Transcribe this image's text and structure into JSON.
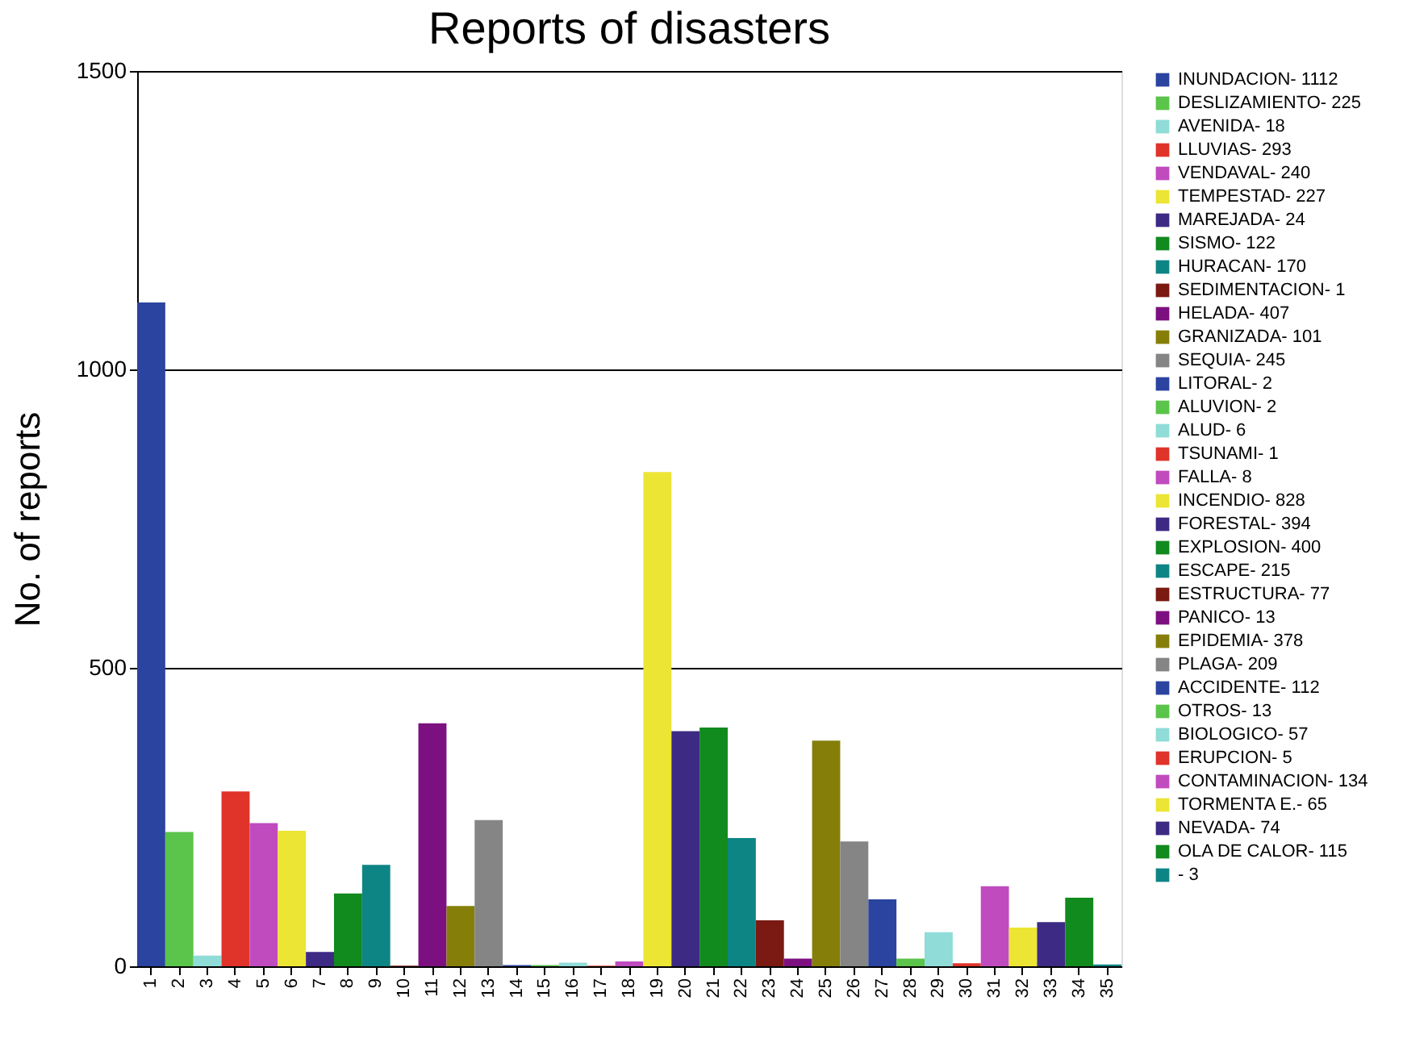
{
  "chart_data": {
    "type": "bar",
    "title": "Reports of disasters",
    "ylabel": "No. of reports",
    "categories": [
      "1",
      "2",
      "3",
      "4",
      "5",
      "6",
      "7",
      "8",
      "9",
      "10",
      "11",
      "12",
      "13",
      "14",
      "15",
      "16",
      "17",
      "18",
      "19",
      "20",
      "21",
      "22",
      "23",
      "24",
      "25",
      "26",
      "27",
      "28",
      "29",
      "30",
      "31",
      "32",
      "33",
      "34",
      "35"
    ],
    "ylim": [
      0,
      1500
    ],
    "yticks": [
      0,
      500,
      1000,
      1500
    ],
    "grid": "y",
    "legend": "right",
    "series": [
      {
        "name": "INUNDACION- 1112",
        "color": "#2b44a0",
        "values": [
          1112,
          null,
          null,
          null,
          null,
          null,
          null,
          null,
          null,
          null,
          null,
          null,
          null,
          null,
          null,
          null,
          null,
          null,
          null,
          null,
          null,
          null,
          null,
          null,
          null,
          null,
          null,
          null,
          null,
          null,
          null,
          null,
          null,
          null,
          null
        ]
      },
      {
        "name": "DESLIZAMIENTO- 225",
        "color": "#5bc44a",
        "values": [
          null,
          225,
          null,
          null,
          null,
          null,
          null,
          null,
          null,
          null,
          null,
          null,
          null,
          null,
          null,
          null,
          null,
          null,
          null,
          null,
          null,
          null,
          null,
          null,
          null,
          null,
          null,
          null,
          null,
          null,
          null,
          null,
          null,
          null,
          null
        ]
      },
      {
        "name": "AVENIDA- 18",
        "color": "#8fdcd8",
        "values": [
          null,
          null,
          18,
          null,
          null,
          null,
          null,
          null,
          null,
          null,
          null,
          null,
          null,
          null,
          null,
          null,
          null,
          null,
          null,
          null,
          null,
          null,
          null,
          null,
          null,
          null,
          null,
          null,
          null,
          null,
          null,
          null,
          null,
          null,
          null
        ]
      },
      {
        "name": "LLUVIAS- 293",
        "color": "#e0332a",
        "values": [
          null,
          null,
          null,
          293,
          null,
          null,
          null,
          null,
          null,
          null,
          null,
          null,
          null,
          null,
          null,
          null,
          null,
          null,
          null,
          null,
          null,
          null,
          null,
          null,
          null,
          null,
          null,
          null,
          null,
          null,
          null,
          null,
          null,
          null,
          null
        ]
      },
      {
        "name": "VENDAVAL- 240",
        "color": "#c04bbf",
        "values": [
          null,
          null,
          null,
          null,
          240,
          null,
          null,
          null,
          null,
          null,
          null,
          null,
          null,
          null,
          null,
          null,
          null,
          null,
          null,
          null,
          null,
          null,
          null,
          null,
          null,
          null,
          null,
          null,
          null,
          null,
          null,
          null,
          null,
          null,
          null
        ]
      },
      {
        "name": "TEMPESTAD- 227",
        "color": "#ece534",
        "values": [
          null,
          null,
          null,
          null,
          null,
          227,
          null,
          null,
          null,
          null,
          null,
          null,
          null,
          null,
          null,
          null,
          null,
          null,
          null,
          null,
          null,
          null,
          null,
          null,
          null,
          null,
          null,
          null,
          null,
          null,
          null,
          null,
          null,
          null,
          null
        ]
      },
      {
        "name": "MAREJADA- 24",
        "color": "#3d2a85",
        "values": [
          null,
          null,
          null,
          null,
          null,
          null,
          24,
          null,
          null,
          null,
          null,
          null,
          null,
          null,
          null,
          null,
          null,
          null,
          null,
          null,
          null,
          null,
          null,
          null,
          null,
          null,
          null,
          null,
          null,
          null,
          null,
          null,
          null,
          null,
          null
        ]
      },
      {
        "name": "SISMO- 122",
        "color": "#118a1e",
        "values": [
          null,
          null,
          null,
          null,
          null,
          null,
          null,
          122,
          null,
          null,
          null,
          null,
          null,
          null,
          null,
          null,
          null,
          null,
          null,
          null,
          null,
          null,
          null,
          null,
          null,
          null,
          null,
          null,
          null,
          null,
          null,
          null,
          null,
          null,
          null
        ]
      },
      {
        "name": "HURACAN- 170",
        "color": "#0e8585",
        "values": [
          null,
          null,
          null,
          null,
          null,
          null,
          null,
          null,
          170,
          null,
          null,
          null,
          null,
          null,
          null,
          null,
          null,
          null,
          null,
          null,
          null,
          null,
          null,
          null,
          null,
          null,
          null,
          null,
          null,
          null,
          null,
          null,
          null,
          null,
          null
        ]
      },
      {
        "name": "SEDIMENTACION- 1",
        "color": "#7a1a12",
        "values": [
          null,
          null,
          null,
          null,
          null,
          null,
          null,
          null,
          null,
          1,
          null,
          null,
          null,
          null,
          null,
          null,
          null,
          null,
          null,
          null,
          null,
          null,
          null,
          null,
          null,
          null,
          null,
          null,
          null,
          null,
          null,
          null,
          null,
          null,
          null
        ]
      },
      {
        "name": "HELADA- 407",
        "color": "#7d1080",
        "values": [
          null,
          null,
          null,
          null,
          null,
          null,
          null,
          null,
          null,
          null,
          407,
          null,
          null,
          null,
          null,
          null,
          null,
          null,
          null,
          null,
          null,
          null,
          null,
          null,
          null,
          null,
          null,
          null,
          null,
          null,
          null,
          null,
          null,
          null,
          null
        ]
      },
      {
        "name": "GRANIZADA- 101",
        "color": "#857f0a",
        "values": [
          null,
          null,
          null,
          null,
          null,
          null,
          null,
          null,
          null,
          null,
          null,
          101,
          null,
          null,
          null,
          null,
          null,
          null,
          null,
          null,
          null,
          null,
          null,
          null,
          null,
          null,
          null,
          null,
          null,
          null,
          null,
          null,
          null,
          null,
          null
        ]
      },
      {
        "name": "SEQUIA- 245",
        "color": "#858585",
        "values": [
          null,
          null,
          null,
          null,
          null,
          null,
          null,
          null,
          null,
          null,
          null,
          null,
          245,
          null,
          null,
          null,
          null,
          null,
          null,
          null,
          null,
          null,
          null,
          null,
          null,
          null,
          null,
          null,
          null,
          null,
          null,
          null,
          null,
          null,
          null
        ]
      },
      {
        "name": "LITORAL- 2",
        "color": "#2b44a0",
        "values": [
          null,
          null,
          null,
          null,
          null,
          null,
          null,
          null,
          null,
          null,
          null,
          null,
          null,
          2,
          null,
          null,
          null,
          null,
          null,
          null,
          null,
          null,
          null,
          null,
          null,
          null,
          null,
          null,
          null,
          null,
          null,
          null,
          null,
          null,
          null
        ]
      },
      {
        "name": "ALUVION- 2",
        "color": "#5bc44a",
        "values": [
          null,
          null,
          null,
          null,
          null,
          null,
          null,
          null,
          null,
          null,
          null,
          null,
          null,
          null,
          2,
          null,
          null,
          null,
          null,
          null,
          null,
          null,
          null,
          null,
          null,
          null,
          null,
          null,
          null,
          null,
          null,
          null,
          null,
          null,
          null
        ]
      },
      {
        "name": "ALUD- 6",
        "color": "#8fdcd8",
        "values": [
          null,
          null,
          null,
          null,
          null,
          null,
          null,
          null,
          null,
          null,
          null,
          null,
          null,
          null,
          null,
          6,
          null,
          null,
          null,
          null,
          null,
          null,
          null,
          null,
          null,
          null,
          null,
          null,
          null,
          null,
          null,
          null,
          null,
          null,
          null
        ]
      },
      {
        "name": "TSUNAMI- 1",
        "color": "#e0332a",
        "values": [
          null,
          null,
          null,
          null,
          null,
          null,
          null,
          null,
          null,
          null,
          null,
          null,
          null,
          null,
          null,
          null,
          1,
          null,
          null,
          null,
          null,
          null,
          null,
          null,
          null,
          null,
          null,
          null,
          null,
          null,
          null,
          null,
          null,
          null,
          null
        ]
      },
      {
        "name": "FALLA- 8",
        "color": "#c04bbf",
        "values": [
          null,
          null,
          null,
          null,
          null,
          null,
          null,
          null,
          null,
          null,
          null,
          null,
          null,
          null,
          null,
          null,
          null,
          8,
          null,
          null,
          null,
          null,
          null,
          null,
          null,
          null,
          null,
          null,
          null,
          null,
          null,
          null,
          null,
          null,
          null
        ]
      },
      {
        "name": "INCENDIO- 828",
        "color": "#ece534",
        "values": [
          null,
          null,
          null,
          null,
          null,
          null,
          null,
          null,
          null,
          null,
          null,
          null,
          null,
          null,
          null,
          null,
          null,
          null,
          828,
          null,
          null,
          null,
          null,
          null,
          null,
          null,
          null,
          null,
          null,
          null,
          null,
          null,
          null,
          null,
          null
        ]
      },
      {
        "name": "FORESTAL- 394",
        "color": "#3d2a85",
        "values": [
          null,
          null,
          null,
          null,
          null,
          null,
          null,
          null,
          null,
          null,
          null,
          null,
          null,
          null,
          null,
          null,
          null,
          null,
          null,
          394,
          null,
          null,
          null,
          null,
          null,
          null,
          null,
          null,
          null,
          null,
          null,
          null,
          null,
          null,
          null
        ]
      },
      {
        "name": "EXPLOSION- 400",
        "color": "#118a1e",
        "values": [
          null,
          null,
          null,
          null,
          null,
          null,
          null,
          null,
          null,
          null,
          null,
          null,
          null,
          null,
          null,
          null,
          null,
          null,
          null,
          null,
          400,
          null,
          null,
          null,
          null,
          null,
          null,
          null,
          null,
          null,
          null,
          null,
          null,
          null,
          null
        ]
      },
      {
        "name": "ESCAPE- 215",
        "color": "#0e8585",
        "values": [
          null,
          null,
          null,
          null,
          null,
          null,
          null,
          null,
          null,
          null,
          null,
          null,
          null,
          null,
          null,
          null,
          null,
          null,
          null,
          null,
          null,
          215,
          null,
          null,
          null,
          null,
          null,
          null,
          null,
          null,
          null,
          null,
          null,
          null,
          null
        ]
      },
      {
        "name": "ESTRUCTURA- 77",
        "color": "#7a1a12",
        "values": [
          null,
          null,
          null,
          null,
          null,
          null,
          null,
          null,
          null,
          null,
          null,
          null,
          null,
          null,
          null,
          null,
          null,
          null,
          null,
          null,
          null,
          null,
          77,
          null,
          null,
          null,
          null,
          null,
          null,
          null,
          null,
          null,
          null,
          null,
          null
        ]
      },
      {
        "name": "PANICO- 13",
        "color": "#7d1080",
        "values": [
          null,
          null,
          null,
          null,
          null,
          null,
          null,
          null,
          null,
          null,
          null,
          null,
          null,
          null,
          null,
          null,
          null,
          null,
          null,
          null,
          null,
          null,
          null,
          13,
          null,
          null,
          null,
          null,
          null,
          null,
          null,
          null,
          null,
          null,
          null
        ]
      },
      {
        "name": "EPIDEMIA- 378",
        "color": "#857f0a",
        "values": [
          null,
          null,
          null,
          null,
          null,
          null,
          null,
          null,
          null,
          null,
          null,
          null,
          null,
          null,
          null,
          null,
          null,
          null,
          null,
          null,
          null,
          null,
          null,
          null,
          378,
          null,
          null,
          null,
          null,
          null,
          null,
          null,
          null,
          null,
          null
        ]
      },
      {
        "name": "PLAGA- 209",
        "color": "#858585",
        "values": [
          null,
          null,
          null,
          null,
          null,
          null,
          null,
          null,
          null,
          null,
          null,
          null,
          null,
          null,
          null,
          null,
          null,
          null,
          null,
          null,
          null,
          null,
          null,
          null,
          null,
          209,
          null,
          null,
          null,
          null,
          null,
          null,
          null,
          null,
          null
        ]
      },
      {
        "name": "ACCIDENTE- 112",
        "color": "#2b44a0",
        "values": [
          null,
          null,
          null,
          null,
          null,
          null,
          null,
          null,
          null,
          null,
          null,
          null,
          null,
          null,
          null,
          null,
          null,
          null,
          null,
          null,
          null,
          null,
          null,
          null,
          null,
          null,
          112,
          null,
          null,
          null,
          null,
          null,
          null,
          null,
          null
        ]
      },
      {
        "name": "OTROS- 13",
        "color": "#5bc44a",
        "values": [
          null,
          null,
          null,
          null,
          null,
          null,
          null,
          null,
          null,
          null,
          null,
          null,
          null,
          null,
          null,
          null,
          null,
          null,
          null,
          null,
          null,
          null,
          null,
          null,
          null,
          null,
          null,
          13,
          null,
          null,
          null,
          null,
          null,
          null,
          null
        ]
      },
      {
        "name": "BIOLOGICO- 57",
        "color": "#8fdcd8",
        "values": [
          null,
          null,
          null,
          null,
          null,
          null,
          null,
          null,
          null,
          null,
          null,
          null,
          null,
          null,
          null,
          null,
          null,
          null,
          null,
          null,
          null,
          null,
          null,
          null,
          null,
          null,
          null,
          null,
          57,
          null,
          null,
          null,
          null,
          null,
          null
        ]
      },
      {
        "name": "ERUPCION- 5",
        "color": "#e0332a",
        "values": [
          null,
          null,
          null,
          null,
          null,
          null,
          null,
          null,
          null,
          null,
          null,
          null,
          null,
          null,
          null,
          null,
          null,
          null,
          null,
          null,
          null,
          null,
          null,
          null,
          null,
          null,
          null,
          null,
          null,
          5,
          null,
          null,
          null,
          null,
          null
        ]
      },
      {
        "name": "CONTAMINACION- 134",
        "color": "#c04bbf",
        "values": [
          null,
          null,
          null,
          null,
          null,
          null,
          null,
          null,
          null,
          null,
          null,
          null,
          null,
          null,
          null,
          null,
          null,
          null,
          null,
          null,
          null,
          null,
          null,
          null,
          null,
          null,
          null,
          null,
          null,
          null,
          134,
          null,
          null,
          null,
          null
        ]
      },
      {
        "name": "TORMENTA E.- 65",
        "color": "#ece534",
        "values": [
          null,
          null,
          null,
          null,
          null,
          null,
          null,
          null,
          null,
          null,
          null,
          null,
          null,
          null,
          null,
          null,
          null,
          null,
          null,
          null,
          null,
          null,
          null,
          null,
          null,
          null,
          null,
          null,
          null,
          null,
          null,
          65,
          null,
          null,
          null
        ]
      },
      {
        "name": "NEVADA- 74",
        "color": "#3d2a85",
        "values": [
          null,
          null,
          null,
          null,
          null,
          null,
          null,
          null,
          null,
          null,
          null,
          null,
          null,
          null,
          null,
          null,
          null,
          null,
          null,
          null,
          null,
          null,
          null,
          null,
          null,
          null,
          null,
          null,
          null,
          null,
          null,
          null,
          74,
          null,
          null
        ]
      },
      {
        "name": "OLA DE CALOR- 115",
        "color": "#118a1e",
        "values": [
          null,
          null,
          null,
          null,
          null,
          null,
          null,
          null,
          null,
          null,
          null,
          null,
          null,
          null,
          null,
          null,
          null,
          null,
          null,
          null,
          null,
          null,
          null,
          null,
          null,
          null,
          null,
          null,
          null,
          null,
          null,
          null,
          null,
          115,
          null
        ]
      },
      {
        "name": "- 3",
        "color": "#0e8585",
        "values": [
          null,
          null,
          null,
          null,
          null,
          null,
          null,
          null,
          null,
          null,
          null,
          null,
          null,
          null,
          null,
          null,
          null,
          null,
          null,
          null,
          null,
          null,
          null,
          null,
          null,
          null,
          null,
          null,
          null,
          null,
          null,
          null,
          null,
          null,
          3
        ]
      }
    ]
  }
}
